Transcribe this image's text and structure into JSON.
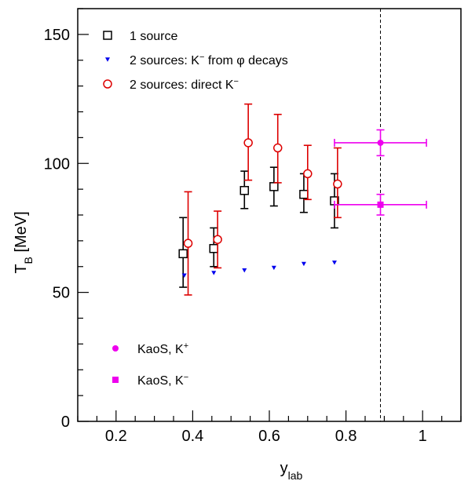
{
  "chart_data": {
    "type": "scatter",
    "xlabel": {
      "main": "y",
      "sub": "lab"
    },
    "ylabel": {
      "main": "T",
      "sub": "B",
      "rest": " [MeV]"
    },
    "xlim": [
      0.1,
      1.1
    ],
    "ylim": [
      0,
      160
    ],
    "x_ticks": [
      0.2,
      0.4,
      0.6,
      0.8,
      1
    ],
    "x_tick_labels": [
      "0.2",
      "0.4",
      "0.6",
      "0.8",
      "1"
    ],
    "y_ticks": [
      0,
      50,
      100,
      150
    ],
    "y_tick_labels": [
      "0",
      "50",
      "100",
      "150"
    ],
    "x_minor_step": 0.05,
    "y_minor_step": 10,
    "grid": false,
    "reference_line": {
      "x": 0.89,
      "style": "dashed",
      "color": "#000000"
    },
    "series": [
      {
        "name": "1 source",
        "legend": {
          "main": "1 source",
          "sup": ""
        },
        "marker": "open-square",
        "color": "#000000",
        "points": [
          {
            "x": 0.375,
            "y": 65,
            "ylo": 52,
            "yhi": 79
          },
          {
            "x": 0.455,
            "y": 67,
            "ylo": 60,
            "yhi": 75
          },
          {
            "x": 0.535,
            "y": 89.5,
            "ylo": 82.5,
            "yhi": 97
          },
          {
            "x": 0.612,
            "y": 91,
            "ylo": 83.5,
            "yhi": 98.5
          },
          {
            "x": 0.69,
            "y": 88,
            "ylo": 81,
            "yhi": 96
          },
          {
            "x": 0.77,
            "y": 85.5,
            "ylo": 75,
            "yhi": 96
          }
        ]
      },
      {
        "name": "2 sources: K⁻ from φ decays",
        "legend": {
          "main": "2 sources: K",
          "sup": "−",
          "rest": " from φ decays"
        },
        "marker": "filled-triangle-down",
        "color": "#0000ee",
        "points": [
          {
            "x": 0.378,
            "y": 56.5
          },
          {
            "x": 0.455,
            "y": 57.5
          },
          {
            "x": 0.535,
            "y": 58.5
          },
          {
            "x": 0.612,
            "y": 59.5
          },
          {
            "x": 0.69,
            "y": 61
          },
          {
            "x": 0.77,
            "y": 61.5
          }
        ]
      },
      {
        "name": "2 sources: direct K⁻",
        "legend": {
          "main": "2 sources: direct K",
          "sup": "−"
        },
        "marker": "open-circle",
        "color": "#dd0000",
        "points": [
          {
            "x": 0.388,
            "y": 69,
            "ylo": 49,
            "yhi": 89
          },
          {
            "x": 0.465,
            "y": 70.5,
            "ylo": 59.5,
            "yhi": 81.5
          },
          {
            "x": 0.545,
            "y": 108,
            "ylo": 93.5,
            "yhi": 123
          },
          {
            "x": 0.622,
            "y": 106,
            "ylo": 92.5,
            "yhi": 119
          },
          {
            "x": 0.7,
            "y": 96,
            "ylo": 86,
            "yhi": 107
          },
          {
            "x": 0.778,
            "y": 92,
            "ylo": 79,
            "yhi": 106
          }
        ]
      },
      {
        "name": "KaoS, K⁺",
        "legend": {
          "main": "KaoS, K",
          "sup": "+"
        },
        "marker": "filled-circle",
        "color": "#ee00ee",
        "points": [
          {
            "x": 0.89,
            "y": 108,
            "ylo": 103,
            "yhi": 113,
            "xlo": 0.77,
            "xhi": 1.01
          }
        ]
      },
      {
        "name": "KaoS, K⁻",
        "legend": {
          "main": "KaoS, K",
          "sup": "−"
        },
        "marker": "filled-square",
        "color": "#ee00ee",
        "points": [
          {
            "x": 0.89,
            "y": 84,
            "ylo": 80,
            "yhi": 88,
            "xlo": 0.77,
            "xhi": 1.01
          }
        ]
      }
    ]
  }
}
